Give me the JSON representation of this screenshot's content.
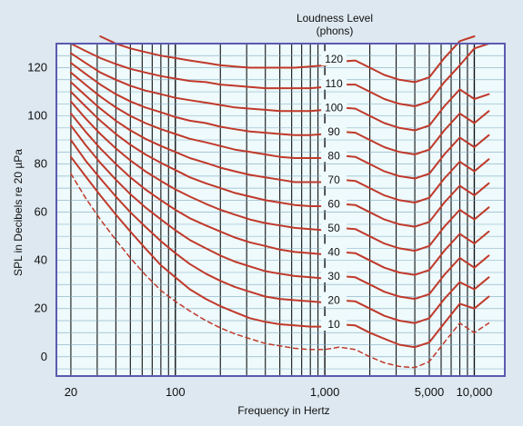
{
  "chart_data": {
    "type": "line",
    "title": "Loudness Level",
    "subtitle": "(phons)",
    "xlabel": "Frequency in Hertz",
    "ylabel": "SPL in Decibels re 20 µPa",
    "x_scale": "log",
    "xlim": [
      16,
      16000
    ],
    "ylim": [
      -8,
      130
    ],
    "x_tick_labels": [
      {
        "x": 20,
        "label": "20"
      },
      {
        "x": 100,
        "label": "100"
      },
      {
        "x": 1000,
        "label": "1,000"
      },
      {
        "x": 5000,
        "label": "5,000"
      },
      {
        "x": 10000,
        "label": "10,000"
      }
    ],
    "y_ticks": [
      0,
      20,
      40,
      60,
      80,
      100,
      120
    ],
    "grid": true,
    "colors": {
      "curve": "#c0392b",
      "plot_background": "#eefafb",
      "frame": "#5a5ab0",
      "gridline": "#111111",
      "page_background": "#dde8f0"
    },
    "x": [
      20,
      25,
      31.5,
      40,
      50,
      63,
      80,
      100,
      125,
      160,
      200,
      250,
      315,
      400,
      500,
      630,
      800,
      1000,
      1250,
      1600,
      2000,
      2500,
      3150,
      4000,
      5000,
      6300,
      8000,
      10000,
      12500
    ],
    "series": [
      {
        "name": "10",
        "values": [
          83,
          75,
          67,
          59,
          52,
          45,
          38,
          33,
          28,
          24,
          21,
          18.5,
          16,
          14.5,
          13.5,
          13,
          12.5,
          12.5,
          13.5,
          13,
          10,
          7.5,
          5,
          4,
          6,
          14,
          22,
          20,
          25
        ]
      },
      {
        "name": "20",
        "values": [
          90,
          81.5,
          74,
          66.5,
          60,
          54,
          48,
          43,
          38.5,
          34.5,
          31.5,
          29,
          27,
          25,
          24,
          23.5,
          23,
          22.5,
          23.5,
          23,
          20,
          17,
          15,
          14,
          16,
          24,
          31,
          28,
          33
        ]
      },
      {
        "name": "30",
        "values": [
          96,
          88,
          80.5,
          73.5,
          67.5,
          62,
          57,
          52.5,
          48.5,
          45,
          42,
          39.5,
          37.5,
          35.5,
          34.5,
          33.5,
          33,
          32.5,
          33.5,
          33,
          30,
          27,
          25,
          24,
          26,
          34,
          41,
          37,
          42
        ]
      },
      {
        "name": "40",
        "values": [
          101,
          93.5,
          86.5,
          80,
          74.5,
          69.5,
          65,
          61,
          57.5,
          54.5,
          52,
          49.5,
          47.5,
          46,
          44.5,
          43.5,
          43,
          42.5,
          43.5,
          43,
          40,
          37,
          35,
          34,
          36,
          44,
          51,
          47,
          52
        ]
      },
      {
        "name": "50",
        "values": [
          106,
          99,
          92.5,
          86.5,
          81.5,
          77,
          73,
          69.5,
          66.5,
          63.5,
          61,
          59,
          57,
          55.5,
          54.5,
          53.5,
          53,
          52.5,
          53.5,
          53,
          50,
          47,
          45,
          44,
          46,
          54,
          61,
          57,
          62
        ]
      },
      {
        "name": "60",
        "values": [
          110,
          104,
          98,
          92.5,
          88,
          84,
          80.5,
          77.5,
          74.5,
          72,
          70,
          68,
          66.5,
          65,
          64,
          63,
          62.5,
          62.5,
          63.5,
          63,
          60,
          57,
          55,
          54,
          56,
          64,
          71,
          67,
          72
        ]
      },
      {
        "name": "70",
        "values": [
          114,
          108.5,
          103,
          98,
          94,
          90.5,
          87.5,
          85,
          82.5,
          80.5,
          78.5,
          77,
          75.5,
          74.5,
          73.5,
          72.5,
          72.5,
          72.5,
          73.5,
          73,
          70,
          67,
          65,
          64,
          66,
          74,
          81,
          77,
          82
        ]
      },
      {
        "name": "80",
        "values": [
          118,
          113,
          108,
          103.5,
          100,
          97,
          94.5,
          92.5,
          90.5,
          89,
          87.5,
          86,
          85,
          84,
          83,
          82.5,
          82.5,
          82.5,
          83.5,
          83,
          80,
          77,
          75,
          74,
          76,
          84,
          91,
          87,
          92
        ]
      },
      {
        "name": "90",
        "values": [
          122,
          117.5,
          113,
          109,
          106,
          103.5,
          101.5,
          99.5,
          98,
          97,
          95.5,
          94.5,
          93.5,
          93,
          92.5,
          92,
          92,
          92.5,
          93.5,
          93,
          90,
          87,
          85,
          84,
          86,
          94,
          101,
          97,
          102
        ]
      },
      {
        "name": "100",
        "values": [
          126,
          122,
          118,
          115,
          112.5,
          110.5,
          109,
          107.5,
          106.5,
          105.5,
          104.5,
          103.5,
          103,
          102.5,
          102,
          102,
          102,
          102.5,
          103.5,
          103,
          100,
          97,
          95,
          94,
          96,
          104,
          111,
          107,
          109
        ]
      },
      {
        "name": "110",
        "values": [
          130,
          127,
          124,
          121.5,
          119.5,
          118,
          116.5,
          115.5,
          114.5,
          114,
          113,
          112.5,
          112,
          111.5,
          111.5,
          111.5,
          111.5,
          112,
          113,
          113,
          110,
          107,
          105,
          104,
          106,
          114,
          121,
          128,
          130
        ]
      },
      {
        "name": "120",
        "values": [
          null,
          null,
          133,
          130,
          128,
          126.5,
          125,
          124,
          123,
          122,
          121,
          120.5,
          120,
          120,
          120,
          120,
          120.5,
          121,
          122.5,
          123,
          120,
          117,
          115,
          114,
          116,
          124,
          131,
          133,
          null
        ]
      },
      {
        "name": "",
        "style": "dashed",
        "values": [
          76,
          66,
          57,
          48.5,
          41,
          34,
          27.5,
          23,
          19,
          15,
          12,
          9.5,
          7.5,
          5.5,
          4.5,
          3.5,
          3,
          3,
          4,
          3,
          0,
          -2.5,
          -4,
          -4.5,
          -2,
          6,
          14,
          10,
          14
        ]
      }
    ],
    "curve_labels": [
      {
        "text": "10",
        "x": 1150,
        "y": 13.5
      },
      {
        "text": "20",
        "x": 1150,
        "y": 23.5
      },
      {
        "text": "30",
        "x": 1150,
        "y": 33.5
      },
      {
        "text": "40",
        "x": 1150,
        "y": 43.5
      },
      {
        "text": "50",
        "x": 1150,
        "y": 53.5
      },
      {
        "text": "60",
        "x": 1150,
        "y": 63.5
      },
      {
        "text": "70",
        "x": 1150,
        "y": 73.5
      },
      {
        "text": "80",
        "x": 1150,
        "y": 83.5
      },
      {
        "text": "90",
        "x": 1150,
        "y": 93.5
      },
      {
        "text": "100",
        "x": 1150,
        "y": 103.5
      },
      {
        "text": "110",
        "x": 1150,
        "y": 113.5
      },
      {
        "text": "120",
        "x": 1150,
        "y": 123.5
      }
    ]
  }
}
